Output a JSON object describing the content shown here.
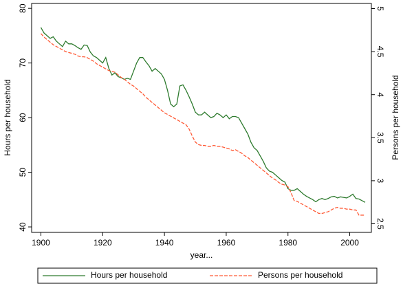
{
  "chart_data": {
    "type": "line",
    "xlabel": "year...",
    "ylabel": "Hours per household",
    "y2label": "Persons per household",
    "x": [
      1900,
      1901,
      1902,
      1903,
      1904,
      1905,
      1906,
      1907,
      1908,
      1909,
      1910,
      1911,
      1912,
      1913,
      1914,
      1915,
      1916,
      1917,
      1918,
      1919,
      1920,
      1921,
      1922,
      1923,
      1924,
      1925,
      1926,
      1927,
      1928,
      1929,
      1930,
      1931,
      1932,
      1933,
      1934,
      1935,
      1936,
      1937,
      1938,
      1939,
      1940,
      1941,
      1942,
      1943,
      1944,
      1945,
      1946,
      1947,
      1948,
      1949,
      1950,
      1951,
      1952,
      1953,
      1954,
      1955,
      1956,
      1957,
      1958,
      1959,
      1960,
      1961,
      1962,
      1963,
      1964,
      1965,
      1966,
      1967,
      1968,
      1969,
      1970,
      1971,
      1972,
      1973,
      1974,
      1975,
      1976,
      1977,
      1978,
      1979,
      1980,
      1981,
      1982,
      1983,
      1984,
      1985,
      1986,
      1987,
      1988,
      1989,
      1990,
      1991,
      1992,
      1993,
      1994,
      1995,
      1996,
      1997,
      1998,
      1999,
      2000,
      2001,
      2002,
      2003,
      2004,
      2005
    ],
    "series": [
      {
        "name": "Hours per household",
        "color": "#2d7a2d",
        "axis": "y",
        "values": [
          76.5,
          75.5,
          75,
          74.5,
          74.8,
          74,
          73.5,
          73,
          74,
          73.5,
          73.5,
          73.2,
          72.8,
          72.5,
          73.3,
          73.2,
          72,
          71.3,
          71,
          70.5,
          70,
          71,
          69,
          67.8,
          68.2,
          67.5,
          67.3,
          67,
          67.2,
          67,
          68.5,
          70,
          71,
          71,
          70.2,
          69.5,
          68.5,
          69,
          68.5,
          68,
          67,
          65,
          62.5,
          62,
          62.5,
          65.8,
          66,
          65,
          63.8,
          62.5,
          61,
          60.5,
          60.5,
          61,
          60.5,
          60,
          60.2,
          60.8,
          60.5,
          60,
          60.5,
          59.8,
          60.2,
          60.2,
          60,
          59,
          58,
          57,
          55.5,
          54.5,
          54,
          53,
          52,
          50.8,
          50.2,
          50,
          49.5,
          49,
          48.5,
          48.2,
          47,
          46.7,
          46.7,
          47,
          46.5,
          46,
          45.6,
          45.3,
          45,
          44.6,
          45,
          45.2,
          45,
          45.2,
          45.5,
          45.6,
          45.3,
          45.5,
          45.4,
          45.3,
          45.6,
          46,
          45.2,
          45.1,
          44.8,
          44.5
        ]
      },
      {
        "name": "Persons per household",
        "color": "#ff5a36",
        "axis": "y2",
        "dashed": true,
        "values": [
          4.71,
          4.67,
          4.64,
          4.61,
          4.58,
          4.56,
          4.54,
          4.52,
          4.5,
          4.49,
          4.48,
          4.47,
          4.45,
          4.44,
          4.44,
          4.43,
          4.41,
          4.39,
          4.36,
          4.34,
          4.32,
          4.3,
          4.28,
          4.27,
          4.26,
          4.23,
          4.2,
          4.18,
          4.15,
          4.12,
          4.1,
          4.07,
          4.04,
          4.01,
          3.97,
          3.94,
          3.91,
          3.88,
          3.85,
          3.82,
          3.79,
          3.77,
          3.75,
          3.73,
          3.71,
          3.69,
          3.67,
          3.65,
          3.6,
          3.52,
          3.45,
          3.42,
          3.41,
          3.41,
          3.4,
          3.4,
          3.41,
          3.4,
          3.4,
          3.39,
          3.38,
          3.37,
          3.35,
          3.36,
          3.34,
          3.32,
          3.29,
          3.27,
          3.24,
          3.21,
          3.18,
          3.15,
          3.12,
          3.09,
          3.06,
          3.03,
          3.01,
          2.98,
          2.96,
          2.95,
          2.93,
          2.86,
          2.77,
          2.76,
          2.74,
          2.72,
          2.7,
          2.68,
          2.66,
          2.64,
          2.62,
          2.62,
          2.63,
          2.64,
          2.66,
          2.68,
          2.69,
          2.68,
          2.68,
          2.67,
          2.67,
          2.66,
          2.66,
          2.6,
          2.6,
          2.6
        ]
      }
    ],
    "xlim": [
      1897,
      2007
    ],
    "xticks": [
      1900,
      1920,
      1940,
      1960,
      1980,
      2000
    ],
    "ylim": [
      39,
      80.9
    ],
    "yticks": [
      40,
      50,
      60,
      70,
      80
    ],
    "y2lim": [
      2.4,
      5.06
    ],
    "y2ticks": [
      2.5,
      3,
      3.5,
      4,
      4.5,
      5
    ],
    "legend": "bottom"
  }
}
